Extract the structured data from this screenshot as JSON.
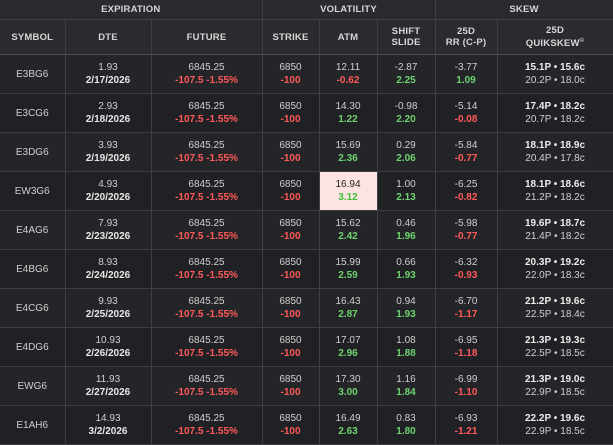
{
  "groups": {
    "expiration": "EXPIRATION",
    "volatility": "VOLATILITY",
    "skew": "SKEW"
  },
  "headers": {
    "symbol": "SYMBOL",
    "dte": "DTE",
    "future": "FUTURE",
    "strike": "STRIKE",
    "atm": "ATM",
    "shift_line1": "SHIFT",
    "shift_line2": "SLIDE",
    "rr_line1": "25D",
    "rr_line2": "RR (C-P)",
    "qs_line1": "25D",
    "qs_line2": "QUIKSKEW",
    "qs_mark": "©"
  },
  "rows": [
    {
      "symbol": "E3BG6",
      "dte": "1.93",
      "date": "2/17/2026",
      "future": "6845.25",
      "future_chg": "-107.5 -1.55%",
      "strike": "6850",
      "strike_chg": "-100",
      "atm": "12.11",
      "atm_chg": "-0.62",
      "shift": "-2.87",
      "slide": "2.25",
      "rr": "-3.77",
      "rr_chg": "1.09",
      "qs_top": "15.1P • 15.6c",
      "qs_bot": "20.2P • 18.0c"
    },
    {
      "symbol": "E3CG6",
      "dte": "2.93",
      "date": "2/18/2026",
      "future": "6845.25",
      "future_chg": "-107.5 -1.55%",
      "strike": "6850",
      "strike_chg": "-100",
      "atm": "14.30",
      "atm_chg": "1.22",
      "shift": "-0.98",
      "slide": "2.20",
      "rr": "-5.14",
      "rr_chg": "-0.08",
      "qs_top": "17.4P • 18.2c",
      "qs_bot": "20.7P • 18.2c"
    },
    {
      "symbol": "E3DG6",
      "dte": "3.93",
      "date": "2/19/2026",
      "future": "6845.25",
      "future_chg": "-107.5 -1.55%",
      "strike": "6850",
      "strike_chg": "-100",
      "atm": "15.69",
      "atm_chg": "2.36",
      "shift": "0.29",
      "slide": "2.06",
      "rr": "-5.84",
      "rr_chg": "-0.77",
      "qs_top": "18.1P • 18.9c",
      "qs_bot": "20.4P • 17.8c"
    },
    {
      "symbol": "EW3G6",
      "dte": "4.93",
      "date": "2/20/2026",
      "future": "6845.25",
      "future_chg": "-107.5 -1.55%",
      "strike": "6850",
      "strike_chg": "-100",
      "atm": "16.94",
      "atm_chg": "3.12",
      "shift": "1.00",
      "slide": "2.13",
      "rr": "-6.25",
      "rr_chg": "-0.82",
      "qs_top": "18.1P • 18.6c",
      "qs_bot": "21.2P • 18.2c",
      "highlight_atm": true
    },
    {
      "symbol": "E4AG6",
      "dte": "7.93",
      "date": "2/23/2026",
      "future": "6845.25",
      "future_chg": "-107.5 -1.55%",
      "strike": "6850",
      "strike_chg": "-100",
      "atm": "15.62",
      "atm_chg": "2.42",
      "shift": "0.46",
      "slide": "1.96",
      "rr": "-5.98",
      "rr_chg": "-0.77",
      "qs_top": "19.6P • 18.7c",
      "qs_bot": "21.4P • 18.2c"
    },
    {
      "symbol": "E4BG6",
      "dte": "8.93",
      "date": "2/24/2026",
      "future": "6845.25",
      "future_chg": "-107.5 -1.55%",
      "strike": "6850",
      "strike_chg": "-100",
      "atm": "15.99",
      "atm_chg": "2.59",
      "shift": "0.66",
      "slide": "1.93",
      "rr": "-6.32",
      "rr_chg": "-0.93",
      "qs_top": "20.3P • 19.2c",
      "qs_bot": "22.0P • 18.3c"
    },
    {
      "symbol": "E4CG6",
      "dte": "9.93",
      "date": "2/25/2026",
      "future": "6845.25",
      "future_chg": "-107.5 -1.55%",
      "strike": "6850",
      "strike_chg": "-100",
      "atm": "16.43",
      "atm_chg": "2.87",
      "shift": "0.94",
      "slide": "1.93",
      "rr": "-6.70",
      "rr_chg": "-1.17",
      "qs_top": "21.2P • 19.6c",
      "qs_bot": "22.5P • 18.4c"
    },
    {
      "symbol": "E4DG6",
      "dte": "10.93",
      "date": "2/26/2026",
      "future": "6845.25",
      "future_chg": "-107.5 -1.55%",
      "strike": "6850",
      "strike_chg": "-100",
      "atm": "17.07",
      "atm_chg": "2.96",
      "shift": "1.08",
      "slide": "1.88",
      "rr": "-6.95",
      "rr_chg": "-1.18",
      "qs_top": "21.3P • 19.3c",
      "qs_bot": "22.5P • 18.5c"
    },
    {
      "symbol": "EWG6",
      "dte": "11.93",
      "date": "2/27/2026",
      "future": "6845.25",
      "future_chg": "-107.5 -1.55%",
      "strike": "6850",
      "strike_chg": "-100",
      "atm": "17.30",
      "atm_chg": "3.00",
      "shift": "1.16",
      "slide": "1.84",
      "rr": "-6.99",
      "rr_chg": "-1.10",
      "qs_top": "21.3P • 19.0c",
      "qs_bot": "22.9P • 18.5c"
    },
    {
      "symbol": "E1AH6",
      "dte": "14.93",
      "date": "3/2/2026",
      "future": "6845.25",
      "future_chg": "-107.5 -1.55%",
      "strike": "6850",
      "strike_chg": "-100",
      "atm": "16.49",
      "atm_chg": "2.63",
      "shift": "0.83",
      "slide": "1.80",
      "rr": "-6.93",
      "rr_chg": "-1.21",
      "qs_top": "22.2P • 19.6c",
      "qs_bot": "22.9P • 18.5c"
    }
  ],
  "colors": {
    "background": "#262729",
    "negative": "#ff5a5a",
    "positive": "#6fd36f",
    "highlight": "#fde4e2"
  }
}
